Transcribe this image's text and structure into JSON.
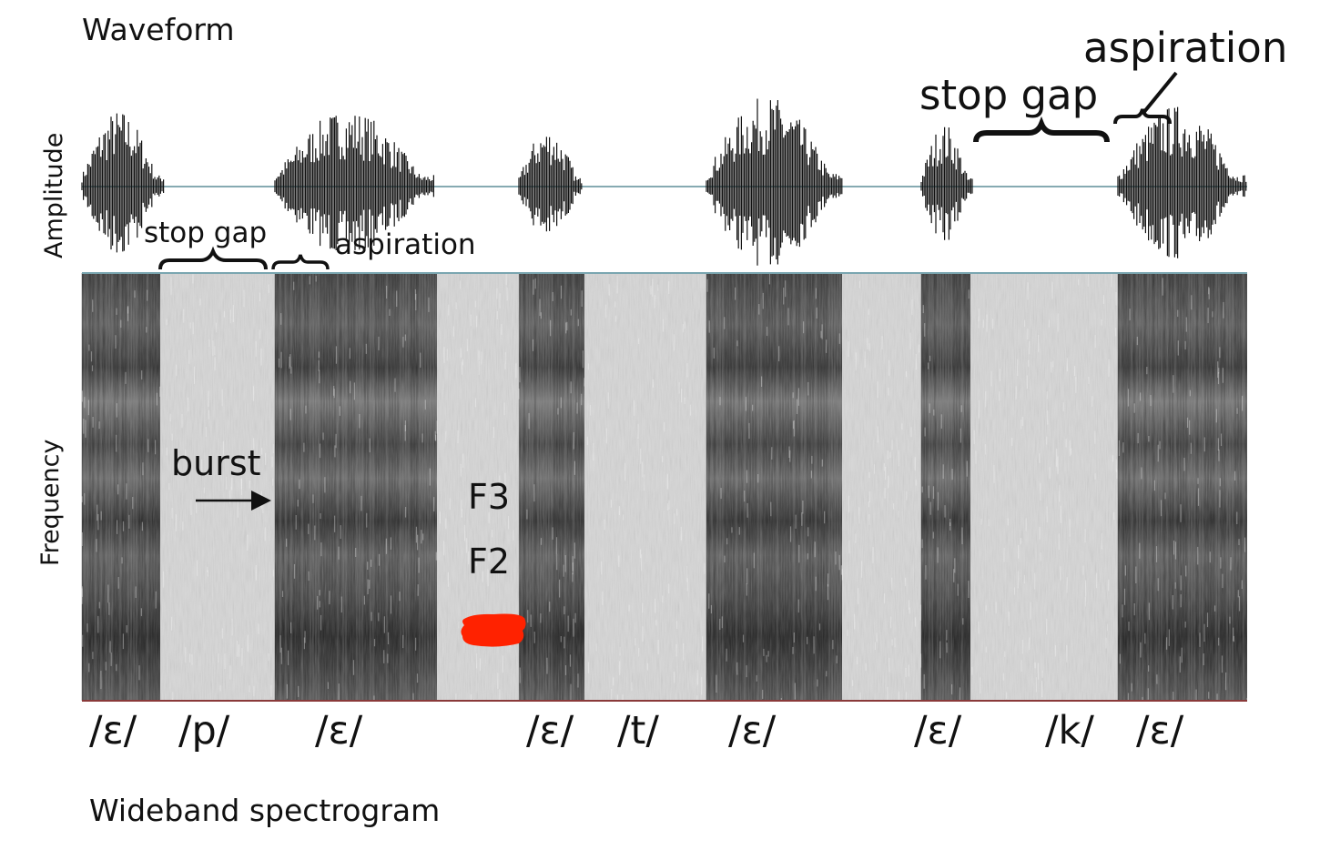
{
  "labels": {
    "waveform_title": "Waveform",
    "spectrogram_title": "Wideband spectrogram",
    "amplitude_axis": "Amplitude",
    "frequency_axis": "Frequency"
  },
  "annotations": {
    "stop_gap_1": "stop gap",
    "aspiration_1": "aspiration",
    "burst": "burst",
    "F3": "F3",
    "F2": "F2",
    "stop_gap_2": "stop gap",
    "aspiration_2": "aspiration"
  },
  "segments": [
    "/ɛ/",
    "/p/",
    "/ɛ/",
    "/ɛ/",
    "/t/",
    "/ɛ/",
    "/ɛ/",
    "/k/",
    "/ɛ/"
  ],
  "colors": {
    "ink": "#111111",
    "axis_line_top": "#7aa6b0",
    "axis_line_bottom": "#8a3a3a",
    "red_mark": "#ff2200"
  }
}
